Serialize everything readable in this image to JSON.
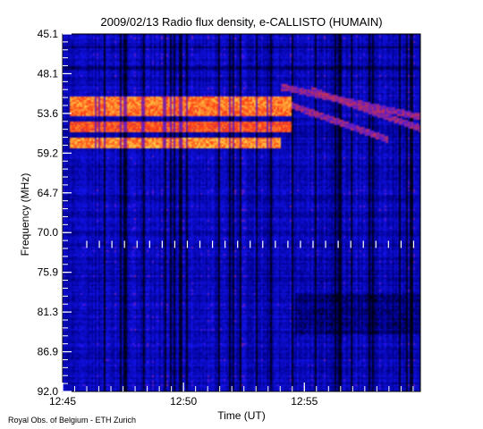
{
  "chart_data": {
    "type": "heatmap",
    "title": "2009/02/13  Radio flux density, e-CALLISTO (HUMAIN)",
    "xlabel": "Time (UT)",
    "ylabel": "Frequency (MHz)",
    "x_tick_labels": [
      "12:45",
      "12:50",
      "12:55"
    ],
    "x_ticks_minutes": [
      0,
      5,
      10
    ],
    "xlim_minutes": [
      0,
      14.8
    ],
    "y_tick_labels": [
      "45.1",
      "48.1",
      "53.6",
      "59.2",
      "64.7",
      "70.0",
      "75.9",
      "81.3",
      "86.9",
      "92.0"
    ],
    "ylim": [
      45.1,
      92.0
    ],
    "y_axis_inverted": true,
    "colormap": [
      "#000000",
      "#1a1aa8",
      "#2a2ae0",
      "#ff3b00",
      "#ffe04a"
    ],
    "bursts": [
      {
        "freq": 54.0,
        "t_start": 0.3,
        "t_end": 9.5,
        "intensity": 0.9
      },
      {
        "freq": 55.3,
        "t_start": 0.3,
        "t_end": 9.5,
        "intensity": 0.85
      },
      {
        "freq": 57.2,
        "t_start": 0.3,
        "t_end": 9.5,
        "intensity": 0.75
      },
      {
        "freq": 59.5,
        "t_start": 0.3,
        "t_end": 9.0,
        "intensity": 0.95
      }
    ],
    "drifting_bursts": [
      {
        "t_start": 9.0,
        "t_end": 14.8,
        "freq_start": 52.0,
        "freq_end": 56.0
      },
      {
        "t_start": 9.5,
        "t_end": 13.5,
        "freq_start": 54.5,
        "freq_end": 59.0
      },
      {
        "t_start": 10.3,
        "t_end": 14.8,
        "freq_start": 52.5,
        "freq_end": 57.5
      }
    ],
    "interference_band_freq": 72.7,
    "low_signal_region": {
      "t_start": 9.6,
      "t_end": 14.8,
      "f_start": 79.0,
      "f_end": 84.5
    }
  },
  "credit": "Royal Obs. of Belgium - ETH Zurich"
}
